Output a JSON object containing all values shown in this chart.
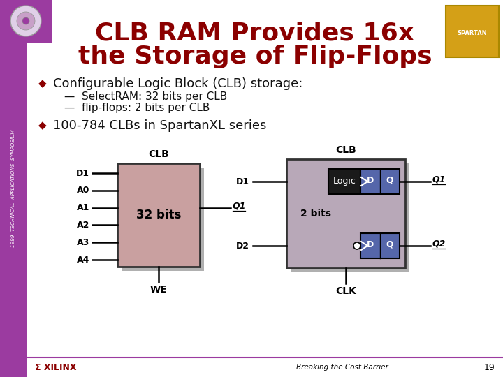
{
  "title_line1": "CLB RAM Provides 16x",
  "title_line2": "the Storage of Flip-Flops",
  "title_color": "#8B0000",
  "bg_color": "#FFFFFF",
  "sidebar_color": "#9B3BA0",
  "bullet1": "Configurable Logic Block (CLB) storage:",
  "sub1": "SelectRAM: 32 bits per CLB",
  "sub2": "flip-flops: 2 bits per CLB",
  "bullet2": "100-784 CLBs in SpartanXL series",
  "clb_fill": "#C9A0A0",
  "clb_shadow": "#B0B0B0",
  "ff_fill": "#B8A8B8",
  "dq_fill": "#5566AA",
  "logic_fill": "#1A1A1A",
  "footer_text": "Breaking the Cost Barrier",
  "page_num": "19",
  "pin_labels": [
    "D1",
    "A0",
    "A1",
    "A2",
    "A3",
    "A4"
  ]
}
